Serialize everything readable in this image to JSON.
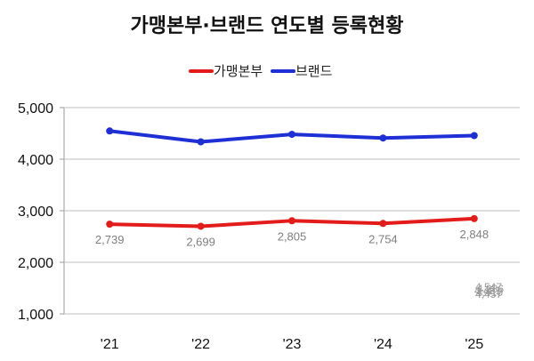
{
  "chart_data": {
    "type": "line",
    "title": "가맹본부·브랜드 연도별 등록현황",
    "categories": [
      "'21",
      "'22",
      "'23",
      "'24",
      "'25"
    ],
    "ylim": [
      1000,
      5000
    ],
    "yticks": [
      "5,000",
      "4,000",
      "3,000",
      "2,000",
      "1,000"
    ],
    "ytick_values": [
      5000,
      4000,
      3000,
      2000,
      1000
    ],
    "grid": true,
    "legend_position": "top-center",
    "series": [
      {
        "name": "가맹본부",
        "color": "#e31b1b",
        "values": [
          2739,
          2699,
          2805,
          2754,
          2848
        ],
        "labels": [
          "2,739",
          "2,699",
          "2,805",
          "2,754",
          "2,848"
        ]
      },
      {
        "name": "브랜드",
        "color": "#1f2fd6",
        "values": [
          4547,
          4336,
          4481,
          4410,
          4457
        ],
        "labels": [
          "4,547",
          "4,336",
          "4,481",
          "4,410",
          "4,457"
        ]
      }
    ]
  }
}
